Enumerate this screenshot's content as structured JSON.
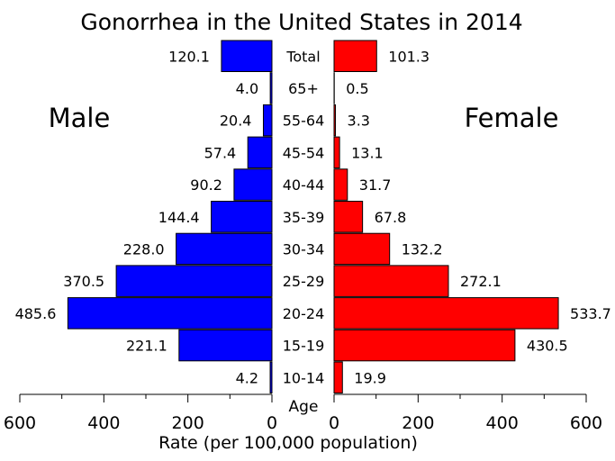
{
  "chart_data": {
    "type": "bar",
    "title": "Gonorrhea in the United States in 2014",
    "xlabel": "Rate (per 100,000 population)",
    "axis_center_label": "Age",
    "xlim": [
      0,
      600
    ],
    "x_ticks": [
      0,
      200,
      400,
      600
    ],
    "categories": [
      "Total",
      "65+",
      "55-64",
      "45-54",
      "40-44",
      "35-39",
      "30-34",
      "25-29",
      "20-24",
      "15-19",
      "10-14"
    ],
    "series": [
      {
        "name": "Male",
        "side": "left",
        "color": "#0000ff",
        "values": [
          120.1,
          4.0,
          20.4,
          57.4,
          90.2,
          144.4,
          228.0,
          370.5,
          485.6,
          221.1,
          4.2
        ],
        "labels": [
          "120.1",
          "4.0",
          "20.4",
          "57.4",
          "90.2",
          "144.4",
          "228.0",
          "370.5",
          "485.6",
          "221.1",
          "4.2"
        ]
      },
      {
        "name": "Female",
        "side": "right",
        "color": "#ff0000",
        "values": [
          101.3,
          0.5,
          3.3,
          13.1,
          31.7,
          67.8,
          132.2,
          272.1,
          533.7,
          430.5,
          19.9
        ],
        "labels": [
          "101.3",
          "0.5",
          "3.3",
          "13.1",
          "31.7",
          "67.8",
          "132.2",
          "272.1",
          "533.7",
          "430.5",
          "19.9"
        ]
      }
    ],
    "grid": false,
    "legend": "none"
  }
}
